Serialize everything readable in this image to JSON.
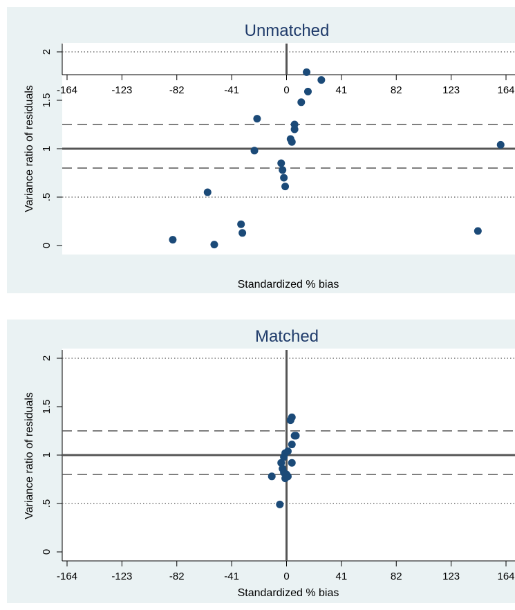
{
  "chart_data": [
    {
      "type": "scatter",
      "title": "Unmatched",
      "xlabel": "Standardized % bias",
      "ylabel": "Variance ratio of residuals",
      "xlim": [
        -164,
        164
      ],
      "ylim": [
        0,
        2
      ],
      "xticks": [
        "-164",
        "-123",
        "-82",
        "-41",
        "0",
        "41",
        "82",
        "123",
        "164"
      ],
      "yticks": [
        "0",
        ".5",
        "1",
        "1.5",
        "2"
      ],
      "reference_lines": {
        "solid_x": 0,
        "solid_y": 1,
        "dashed_y": [
          0.8,
          1.25
        ],
        "dotted_y": [
          0.5,
          2
        ]
      },
      "points": [
        {
          "x": 15,
          "y": 1.79
        },
        {
          "x": 16,
          "y": 1.59
        },
        {
          "x": 26,
          "y": 1.71
        },
        {
          "x": 11,
          "y": 1.48
        },
        {
          "x": -22,
          "y": 1.31
        },
        {
          "x": 6,
          "y": 1.25
        },
        {
          "x": 6,
          "y": 1.2
        },
        {
          "x": 3,
          "y": 1.1
        },
        {
          "x": 4,
          "y": 1.07
        },
        {
          "x": -24,
          "y": 0.98
        },
        {
          "x": -4,
          "y": 0.85
        },
        {
          "x": -3,
          "y": 0.78
        },
        {
          "x": -2,
          "y": 0.7
        },
        {
          "x": -1,
          "y": 0.61
        },
        {
          "x": -59,
          "y": 0.55
        },
        {
          "x": -34,
          "y": 0.22
        },
        {
          "x": -33,
          "y": 0.13
        },
        {
          "x": -85,
          "y": 0.06
        },
        {
          "x": -54,
          "y": 0.01
        },
        {
          "x": 160,
          "y": 1.04
        },
        {
          "x": 143,
          "y": 0.15
        }
      ]
    },
    {
      "type": "scatter",
      "title": "Matched",
      "xlabel": "Standardized % bias",
      "ylabel": "Variance ratio of residuals",
      "xlim": [
        -164,
        164
      ],
      "ylim": [
        0,
        2
      ],
      "xticks": [
        "-164",
        "-123",
        "-82",
        "-41",
        "0",
        "41",
        "82",
        "123",
        "164"
      ],
      "yticks": [
        "0",
        ".5",
        "1",
        "1.5",
        "2"
      ],
      "reference_lines": {
        "solid_x": 0,
        "solid_y": 1,
        "dashed_y": [
          0.8,
          1.25
        ],
        "dotted_y": [
          0.5,
          2
        ]
      },
      "points": [
        {
          "x": 4,
          "y": 1.39
        },
        {
          "x": 3,
          "y": 1.36
        },
        {
          "x": 6,
          "y": 1.2
        },
        {
          "x": 7,
          "y": 1.2
        },
        {
          "x": 4,
          "y": 1.11
        },
        {
          "x": 1,
          "y": 1.04
        },
        {
          "x": -1,
          "y": 1.02
        },
        {
          "x": -2,
          "y": 0.98
        },
        {
          "x": -4,
          "y": 0.92
        },
        {
          "x": 4,
          "y": 0.92
        },
        {
          "x": -3,
          "y": 0.86
        },
        {
          "x": -2,
          "y": 0.82
        },
        {
          "x": 0,
          "y": 0.8
        },
        {
          "x": 1,
          "y": 0.78
        },
        {
          "x": -1,
          "y": 0.76
        },
        {
          "x": -11,
          "y": 0.78
        },
        {
          "x": -5,
          "y": 0.49
        }
      ]
    }
  ]
}
